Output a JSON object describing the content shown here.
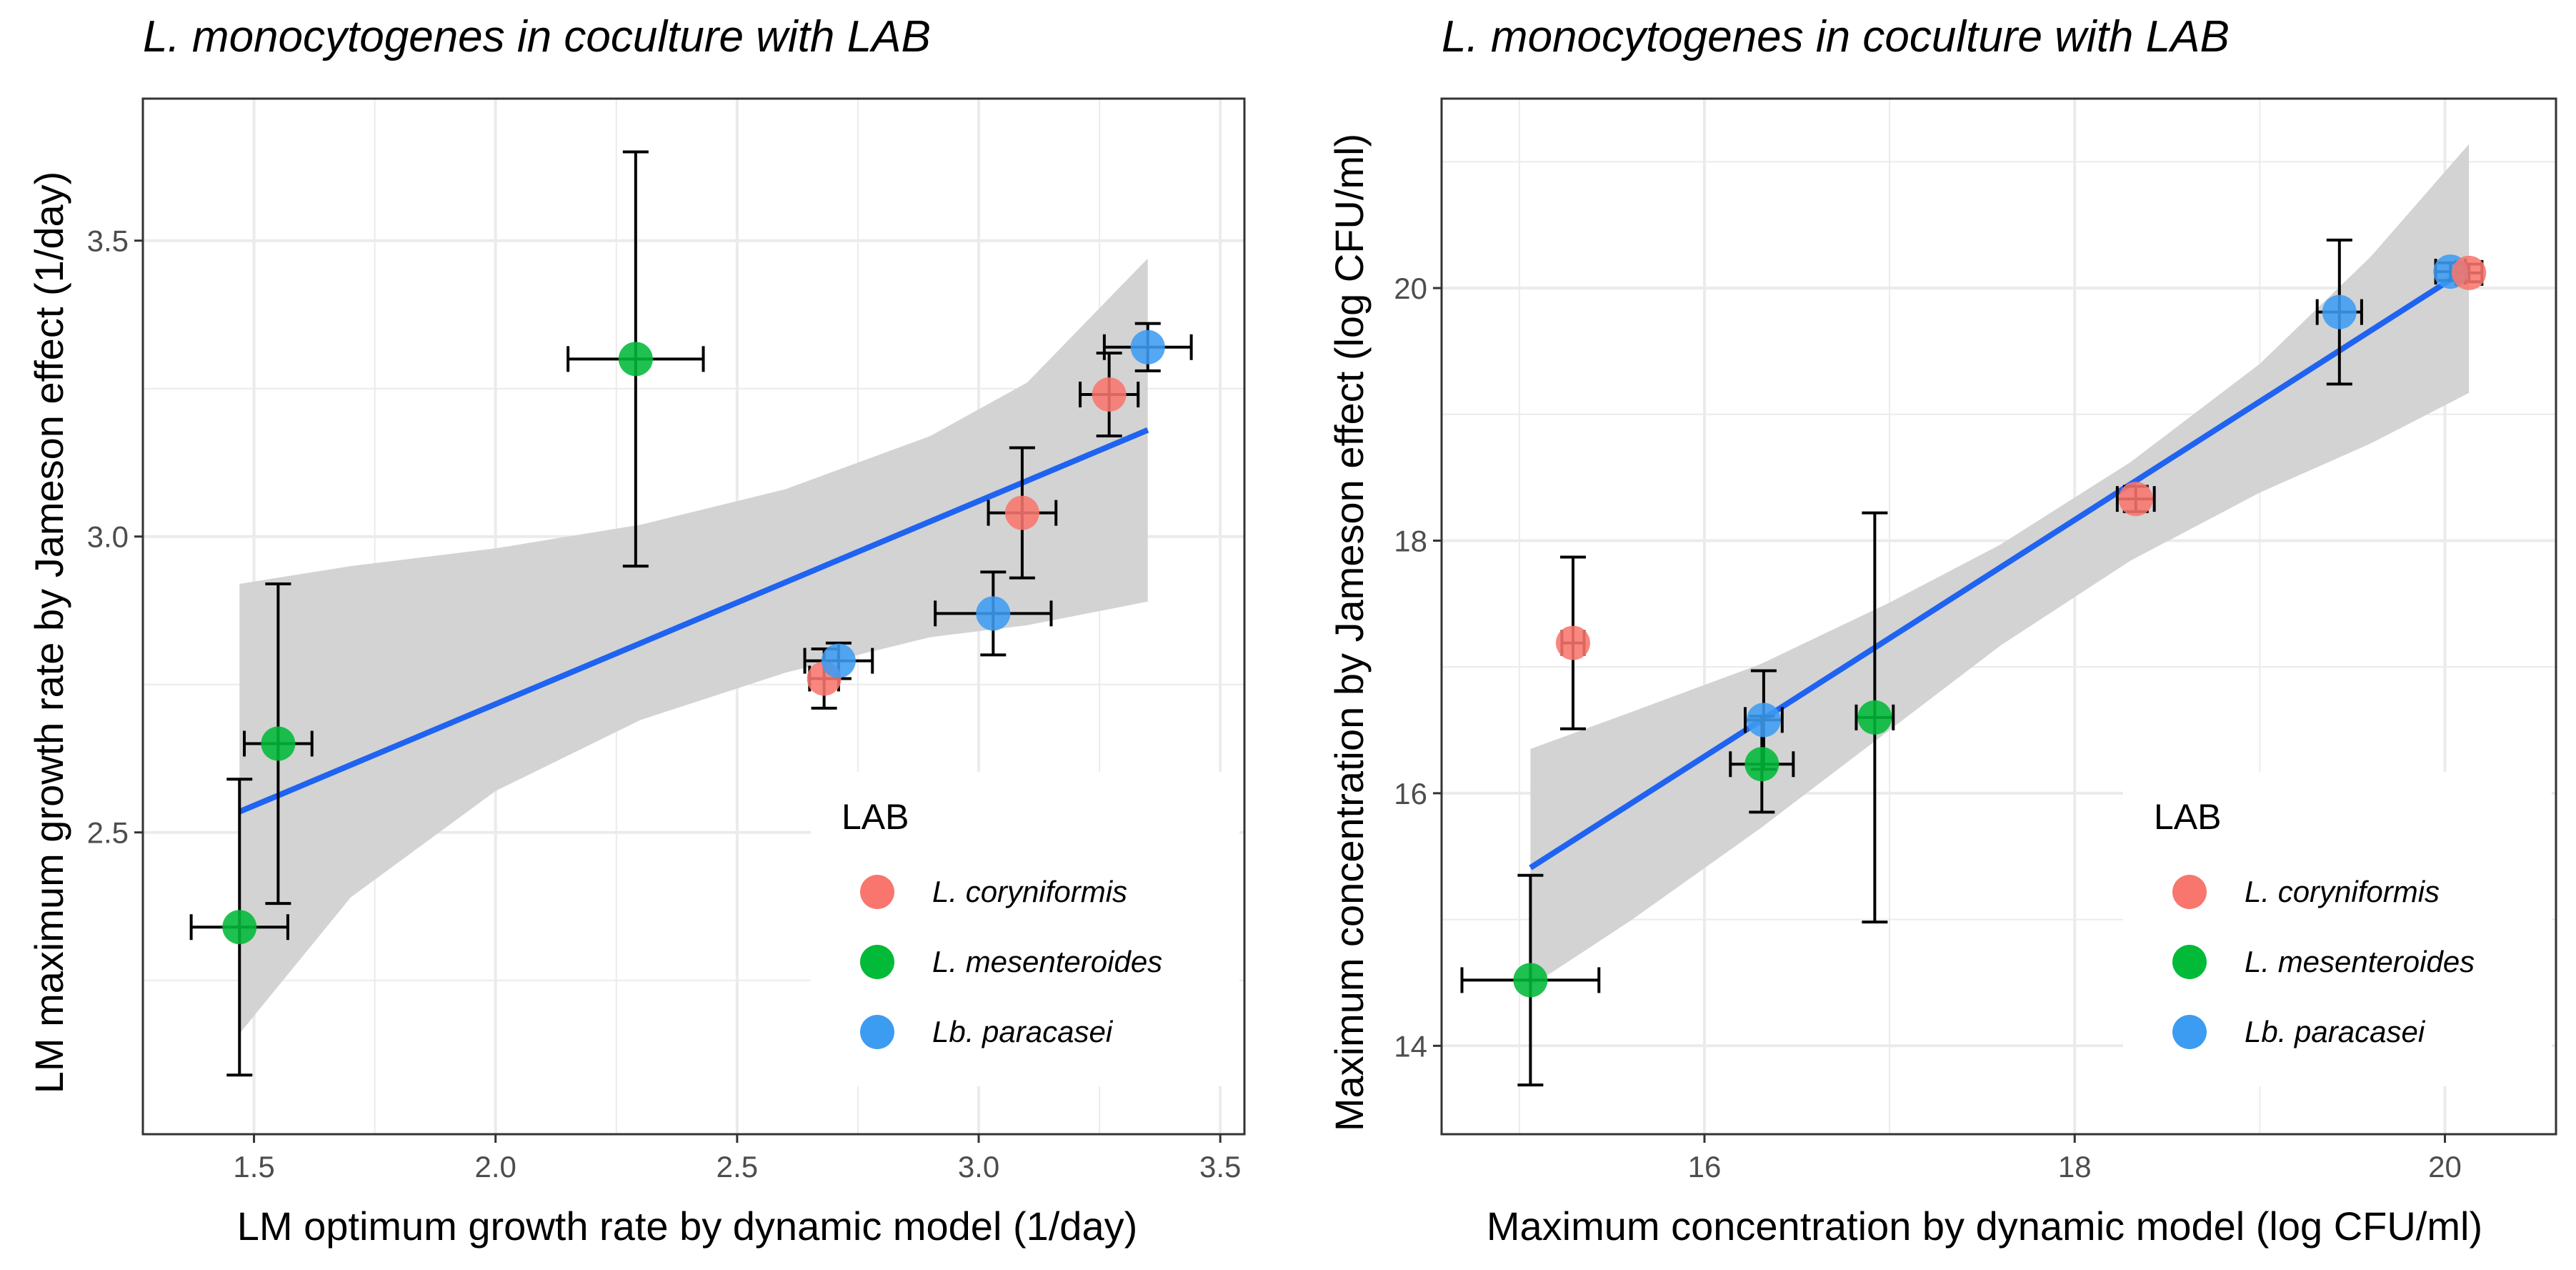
{
  "colors": {
    "L. coryniformis": "#F8766D",
    "L. mesenteroides": "#00BA38",
    "Lb. paracasei": "#3C9CF2",
    "fit_line": "#1F63F0",
    "ribbon": "#D3D3D3",
    "grid": "#EBEBEB",
    "error_bar": "#000000"
  },
  "legend": {
    "title": "LAB",
    "entries": [
      "L. coryniformis",
      "L. mesenteroides",
      "Lb. paracasei"
    ]
  },
  "chart_data": [
    {
      "type": "scatter",
      "title": "L. monocytogenes in coculture with LAB",
      "xlabel": "LM optimum growth rate by dynamic model (1/day)",
      "ylabel": "LM maximum growth rate by Jameson effect (1/day)",
      "xlim": [
        1.27,
        3.55
      ],
      "ylim": [
        1.99,
        3.74
      ],
      "xticks": [
        1.5,
        2.0,
        2.5,
        3.0,
        3.5
      ],
      "xtick_labels": [
        "1.5",
        "2.0",
        "2.5",
        "3.0",
        "3.5"
      ],
      "yticks": [
        2.5,
        3.0,
        3.5
      ],
      "ytick_labels": [
        "2.5",
        "3.0",
        "3.5"
      ],
      "grid": true,
      "legend_position": "bottom-right",
      "points": [
        {
          "group": "L. mesenteroides",
          "x": 1.47,
          "y": 2.34,
          "xerr": 0.1,
          "yerr": 0.25
        },
        {
          "group": "L. mesenteroides",
          "x": 1.55,
          "y": 2.65,
          "xerr": 0.07,
          "yerr": 0.27
        },
        {
          "group": "L. mesenteroides",
          "x": 2.29,
          "y": 3.3,
          "xerr": 0.14,
          "yerr": 0.35
        },
        {
          "group": "L. coryniformis",
          "x": 2.68,
          "y": 2.76,
          "xerr": 0.03,
          "yerr": 0.05
        },
        {
          "group": "Lb. paracasei",
          "x": 2.71,
          "y": 2.79,
          "xerr": 0.07,
          "yerr": 0.03
        },
        {
          "group": "L. coryniformis",
          "x": 3.09,
          "y": 3.04,
          "xerr": 0.07,
          "yerr": 0.11
        },
        {
          "group": "Lb. paracasei",
          "x": 3.03,
          "y": 2.87,
          "xerr": 0.12,
          "yerr": 0.07
        },
        {
          "group": "L. coryniformis",
          "x": 3.27,
          "y": 3.24,
          "xerr": 0.06,
          "yerr": 0.07
        },
        {
          "group": "Lb. paracasei",
          "x": 3.35,
          "y": 3.32,
          "xerr": 0.09,
          "yerr": 0.04
        }
      ],
      "fit": {
        "x": [
          1.47,
          3.35
        ],
        "y": [
          2.535,
          3.18
        ]
      },
      "ribbon": {
        "x": [
          1.47,
          1.7,
          2.0,
          2.3,
          2.6,
          2.9,
          3.1,
          3.35
        ],
        "upper": [
          2.92,
          2.95,
          2.98,
          3.02,
          3.08,
          3.17,
          3.26,
          3.47
        ],
        "lower": [
          2.16,
          2.39,
          2.57,
          2.69,
          2.77,
          2.83,
          2.85,
          2.89
        ]
      }
    },
    {
      "type": "scatter",
      "title": "L. monocytogenes in coculture with LAB",
      "xlabel": "Maximum concentration by dynamic model (log CFU/ml)",
      "ylabel": "Maximum concentration by Jameson effect (log CFU/ml)",
      "xlim": [
        14.58,
        20.6
      ],
      "ylim": [
        13.3,
        21.5
      ],
      "xticks": [
        16,
        18,
        20
      ],
      "xtick_labels": [
        "16",
        "18",
        "20"
      ],
      "yticks": [
        14,
        16,
        18,
        20
      ],
      "ytick_labels": [
        "14",
        "16",
        "18",
        "20"
      ],
      "grid": true,
      "legend_position": "bottom-right",
      "points": [
        {
          "group": "L. mesenteroides",
          "x": 15.06,
          "y": 14.52,
          "xerr": 0.37,
          "yerr": 0.83
        },
        {
          "group": "L. coryniformis",
          "x": 15.29,
          "y": 17.19,
          "xerr": 0.06,
          "yerr": 0.68
        },
        {
          "group": "Lb. paracasei",
          "x": 16.32,
          "y": 16.58,
          "xerr": 0.1,
          "yerr": 0.39
        },
        {
          "group": "L. mesenteroides",
          "x": 16.31,
          "y": 16.23,
          "xerr": 0.17,
          "yerr": 0.38
        },
        {
          "group": "L. mesenteroides",
          "x": 16.92,
          "y": 16.6,
          "xerr": 0.1,
          "yerr": 1.62
        },
        {
          "group": "L. coryniformis",
          "x": 18.33,
          "y": 18.33,
          "xerr": 0.1,
          "yerr": 0.1
        },
        {
          "group": "Lb. paracasei",
          "x": 19.43,
          "y": 19.81,
          "xerr": 0.12,
          "yerr": 0.57
        },
        {
          "group": "Lb. paracasei",
          "x": 20.03,
          "y": 20.13,
          "xerr": 0.08,
          "yerr": 0.07
        },
        {
          "group": "L. coryniformis",
          "x": 20.13,
          "y": 20.12,
          "xerr": 0.07,
          "yerr": 0.07
        }
      ],
      "fit": {
        "x": [
          15.06,
          20.13
        ],
        "y": [
          15.41,
          20.16
        ]
      },
      "ribbon": {
        "x": [
          15.06,
          15.6,
          16.3,
          17.0,
          17.6,
          18.3,
          19.0,
          19.6,
          20.13
        ],
        "upper": [
          16.35,
          16.64,
          17.02,
          17.51,
          17.97,
          18.62,
          19.4,
          20.25,
          21.14
        ],
        "lower": [
          14.47,
          14.99,
          15.72,
          16.5,
          17.17,
          17.84,
          18.38,
          18.77,
          19.17
        ]
      }
    }
  ]
}
